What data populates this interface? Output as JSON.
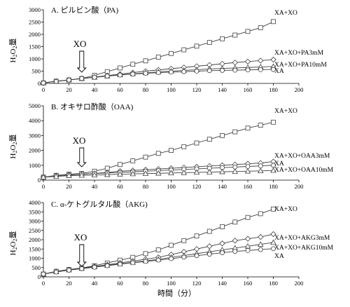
{
  "chart_data": [
    {
      "type": "line",
      "title": "A. ピルビン酸（PA)",
      "ylabel": "H2O2量",
      "ylim": [
        0,
        3000
      ],
      "yticks": [
        0,
        500,
        1000,
        1500,
        2000,
        2500,
        3000
      ],
      "xlim": [
        0,
        200
      ],
      "xticks": [
        0,
        20,
        40,
        60,
        80,
        100,
        120,
        140,
        160,
        180,
        200
      ],
      "x": [
        0,
        10,
        20,
        30,
        40,
        50,
        60,
        70,
        80,
        90,
        100,
        110,
        120,
        130,
        140,
        150,
        160,
        170,
        180
      ],
      "annotation": {
        "text": "XO",
        "x": 30
      },
      "series": [
        {
          "name": "XA+XO",
          "marker": "square",
          "values": [
            20,
            90,
            140,
            200,
            330,
            480,
            630,
            780,
            920,
            1070,
            1220,
            1370,
            1520,
            1670,
            1820,
            1970,
            2120,
            2270,
            2520
          ]
        },
        {
          "name": "XA+XO+PA3mM",
          "marker": "diamond",
          "values": [
            20,
            90,
            140,
            200,
            260,
            320,
            380,
            440,
            500,
            550,
            600,
            650,
            700,
            750,
            800,
            850,
            890,
            930,
            970
          ]
        },
        {
          "name": "XA+XO+PA10mM",
          "marker": "triangle",
          "values": [
            20,
            80,
            140,
            200,
            250,
            300,
            350,
            390,
            430,
            470,
            500,
            530,
            560,
            590,
            610,
            630,
            650,
            670,
            690
          ]
        },
        {
          "name": "XA",
          "marker": "circle",
          "values": [
            20,
            80,
            140,
            200,
            250,
            300,
            340,
            380,
            410,
            440,
            460,
            480,
            500,
            520,
            530,
            540,
            550,
            560,
            570
          ]
        }
      ]
    },
    {
      "type": "line",
      "title": "B. オキサロ酢酸（OAA)",
      "ylabel": "H2O2量",
      "ylim": [
        0,
        5000
      ],
      "yticks": [
        0,
        1000,
        2000,
        3000,
        4000,
        5000
      ],
      "xlim": [
        0,
        200
      ],
      "xticks": [
        0,
        20,
        40,
        60,
        80,
        100,
        120,
        140,
        160,
        180,
        200
      ],
      "x": [
        0,
        10,
        20,
        30,
        40,
        50,
        60,
        70,
        80,
        90,
        100,
        110,
        120,
        130,
        140,
        150,
        160,
        170,
        180
      ],
      "annotation": {
        "text": "XO",
        "x": 30
      },
      "series": [
        {
          "name": "XA+XO",
          "marker": "square",
          "values": [
            200,
            320,
            400,
            450,
            600,
            800,
            1050,
            1300,
            1550,
            1800,
            2000,
            2250,
            2500,
            2750,
            3000,
            3250,
            3500,
            3700,
            3900
          ]
        },
        {
          "name": "XA+XO+OAA3mM",
          "marker": "diamond",
          "values": [
            200,
            300,
            350,
            400,
            450,
            520,
            600,
            650,
            700,
            750,
            800,
            850,
            900,
            950,
            1000,
            1050,
            1100,
            1150,
            1250
          ]
        },
        {
          "name": "XA",
          "marker": "circle",
          "values": [
            200,
            300,
            350,
            400,
            440,
            480,
            520,
            560,
            600,
            640,
            680,
            720,
            760,
            800,
            840,
            880,
            920,
            960,
            1000
          ]
        },
        {
          "name": "XA+XO+OAA10mM",
          "marker": "triangle",
          "values": [
            200,
            250,
            300,
            320,
            340,
            370,
            400,
            420,
            440,
            460,
            480,
            500,
            520,
            540,
            560,
            580,
            600,
            620,
            650
          ]
        }
      ]
    },
    {
      "type": "line",
      "title": "C. α-ケトグルタル酸（AKG)",
      "ylabel": "H2O2量",
      "ylim": [
        0,
        4000
      ],
      "yticks": [
        0,
        500,
        1000,
        1500,
        2000,
        2500,
        3000,
        3500,
        4000
      ],
      "xlim": [
        0,
        200
      ],
      "xticks": [
        0,
        20,
        40,
        60,
        80,
        100,
        120,
        140,
        160,
        180,
        200
      ],
      "x": [
        0,
        10,
        20,
        30,
        40,
        50,
        60,
        70,
        80,
        90,
        100,
        110,
        120,
        130,
        140,
        150,
        160,
        170,
        180
      ],
      "xlabel": "時間（分）",
      "annotation": {
        "text": "XO",
        "x": 30
      },
      "series": [
        {
          "name": "XA+XO",
          "marker": "square",
          "values": [
            150,
            300,
            400,
            480,
            600,
            750,
            900,
            1050,
            1250,
            1450,
            1700,
            1950,
            2200,
            2450,
            2700,
            2950,
            3200,
            3400,
            3650
          ]
        },
        {
          "name": "XA+XO+AKG3mM",
          "marker": "diamond",
          "values": [
            150,
            280,
            380,
            460,
            560,
            650,
            750,
            850,
            950,
            1050,
            1200,
            1350,
            1500,
            1650,
            1800,
            1950,
            2050,
            2150,
            2300
          ]
        },
        {
          "name": "XA+XO+AKG10mM",
          "marker": "triangle",
          "values": [
            150,
            270,
            370,
            450,
            540,
            620,
            700,
            780,
            860,
            940,
            1050,
            1150,
            1250,
            1350,
            1450,
            1550,
            1650,
            1750,
            1850
          ]
        },
        {
          "name": "XA",
          "marker": "circle",
          "values": [
            150,
            260,
            360,
            440,
            520,
            600,
            680,
            760,
            830,
            900,
            980,
            1060,
            1140,
            1220,
            1300,
            1370,
            1420,
            1470,
            1520
          ]
        }
      ]
    }
  ]
}
